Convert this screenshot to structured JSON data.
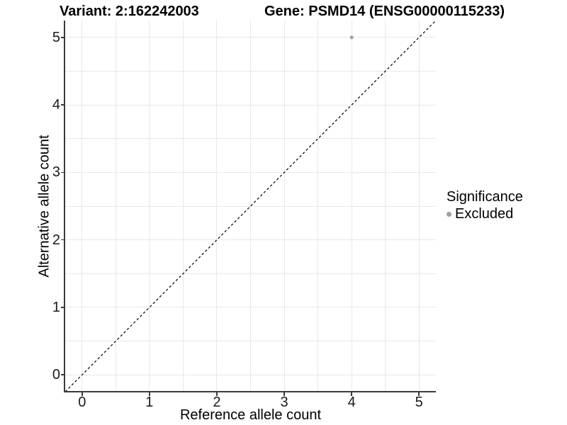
{
  "titles": {
    "variant": "Variant: 2:162242003",
    "gene": "Gene: PSMD14 (ENSG00000115233)"
  },
  "axes": {
    "x": {
      "label": "Reference allele count"
    },
    "y": {
      "label": "Alternative allele count"
    }
  },
  "legend": {
    "title": "Significance",
    "items": [
      {
        "label": "Excluded",
        "color": "#a0a0a0"
      }
    ]
  },
  "colors": {
    "background": "#ffffff",
    "gridline": "#e8e8e8",
    "axis_line": "#3a3a3a",
    "identity_line": "#000000",
    "point_excluded": "#9e9e9e",
    "text": "#000000"
  },
  "chart_data": {
    "type": "scatter",
    "title": "Variant: 2:162242003 — Gene: PSMD14 (ENSG00000115233)",
    "xlabel": "Reference allele count",
    "ylabel": "Alternative allele count",
    "xlim": [
      -0.25,
      5.25
    ],
    "ylim": [
      -0.25,
      5.25
    ],
    "x_ticks": [
      0,
      1,
      2,
      3,
      4,
      5
    ],
    "y_ticks": [
      0,
      1,
      2,
      3,
      4,
      5
    ],
    "x_grid": [
      0,
      0.5,
      1,
      1.5,
      2,
      2.5,
      3,
      3.5,
      4,
      4.5,
      5
    ],
    "y_grid": [
      0,
      0.5,
      1,
      1.5,
      2,
      2.5,
      3,
      3.5,
      4,
      4.5,
      5
    ],
    "grid": "on",
    "legend_position": "right",
    "series": [
      {
        "name": "Excluded",
        "color": "#9e9e9e",
        "points": [
          {
            "x": 4,
            "y": 5
          }
        ]
      }
    ],
    "reference_line": {
      "type": "identity",
      "style": "dashed",
      "color": "#000000",
      "from": [
        -0.25,
        -0.25
      ],
      "to": [
        5.25,
        5.25
      ]
    }
  }
}
